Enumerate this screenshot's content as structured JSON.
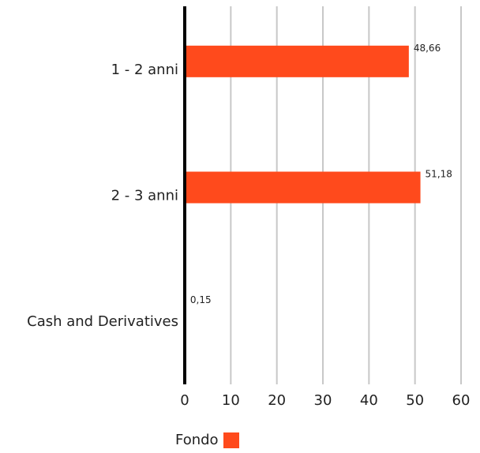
{
  "chart_data": {
    "type": "bar",
    "orientation": "horizontal",
    "categories": [
      "1 - 2 anni",
      "2 - 3 anni",
      "Cash and Derivatives"
    ],
    "series": [
      {
        "name": "Fondo",
        "values": [
          48.66,
          51.18,
          0.15
        ],
        "labels": [
          "48,66",
          "51,18",
          "0,15"
        ]
      }
    ],
    "xlim": [
      0,
      60
    ],
    "xticks": [
      0,
      10,
      20,
      30,
      40,
      50,
      60
    ],
    "xticklabels": [
      "0",
      "10",
      "20",
      "30",
      "40",
      "50",
      "60"
    ],
    "grid": true,
    "legend_position": "bottom-center",
    "colors": {
      "bar": "#ff4a1c",
      "grid": "#c8c8c8",
      "axis": "#000000"
    }
  }
}
